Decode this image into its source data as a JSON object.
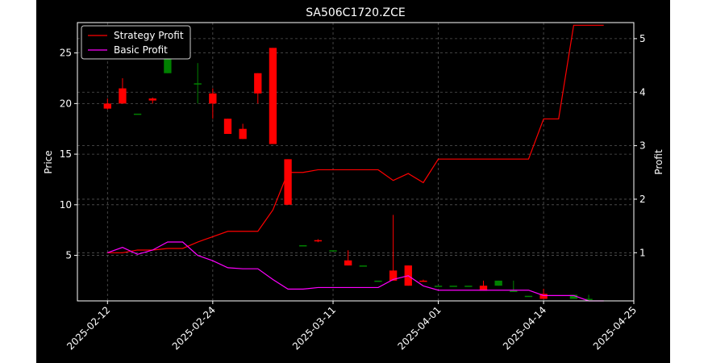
{
  "chart_data": {
    "type": "candlestick+line",
    "title": "SA506C1720.ZCE",
    "xlabel": "",
    "ylabel_left": "Price",
    "ylabel_right": "Profit",
    "ylim_left": [
      0.5,
      28
    ],
    "ylim_right": [
      0.1,
      5.3
    ],
    "grid": true,
    "legend_position": "top-left",
    "x_ticks": [
      "2025-02-12",
      "2025-02-24",
      "2025-03-11",
      "2025-04-01",
      "2025-04-14",
      "2025-04-25"
    ],
    "y_ticks_left": [
      5,
      10,
      15,
      20,
      25
    ],
    "y_ticks_right": [
      1,
      2,
      3,
      4,
      5
    ],
    "colors": {
      "up": "#008000",
      "down": "#ff0000",
      "strategy": "#ff0000",
      "basic": "#ff00ff"
    },
    "candles": [
      {
        "x": 0,
        "open": 20.0,
        "close": 19.5,
        "high": 20.5,
        "low": 19.4
      },
      {
        "x": 1,
        "open": 21.5,
        "close": 20.0,
        "high": 22.5,
        "low": 20.0
      },
      {
        "x": 2,
        "open": 19.0,
        "close": 19.0,
        "high": 19.0,
        "low": 19.0
      },
      {
        "x": 3,
        "open": 20.5,
        "close": 20.3,
        "high": 20.6,
        "low": 20.0
      },
      {
        "x": 4,
        "open": 23.0,
        "close": 24.8,
        "high": 25.0,
        "low": 23.0
      },
      {
        "x": 6,
        "open": 22.0,
        "close": 22.0,
        "high": 24.0,
        "low": 20.0
      },
      {
        "x": 7,
        "open": 21.0,
        "close": 20.0,
        "high": 21.5,
        "low": 18.5
      },
      {
        "x": 8,
        "open": 18.5,
        "close": 17.0,
        "high": 18.5,
        "low": 17.0
      },
      {
        "x": 9,
        "open": 17.5,
        "close": 16.5,
        "high": 18.0,
        "low": 16.5
      },
      {
        "x": 10,
        "open": 23.0,
        "close": 21.0,
        "high": 23.0,
        "low": 20.0
      },
      {
        "x": 11,
        "open": 25.5,
        "close": 16.0,
        "high": 25.5,
        "low": 16.0
      },
      {
        "x": 12,
        "open": 14.5,
        "close": 10.0,
        "high": 14.5,
        "low": 10.0
      },
      {
        "x": 13,
        "open": 6.0,
        "close": 6.0,
        "high": 6.0,
        "low": 6.0
      },
      {
        "x": 14,
        "open": 6.5,
        "close": 6.4,
        "high": 6.6,
        "low": 6.3
      },
      {
        "x": 15,
        "open": 5.5,
        "close": 5.5,
        "high": 5.5,
        "low": 5.5
      },
      {
        "x": 16,
        "open": 4.5,
        "close": 4.0,
        "high": 5.5,
        "low": 4.0
      },
      {
        "x": 17,
        "open": 4.0,
        "close": 4.0,
        "high": 4.0,
        "low": 4.0
      },
      {
        "x": 18,
        "open": 2.5,
        "close": 2.5,
        "high": 2.5,
        "low": 2.5
      },
      {
        "x": 19,
        "open": 3.5,
        "close": 2.5,
        "high": 9.0,
        "low": 2.5
      },
      {
        "x": 20,
        "open": 4.0,
        "close": 2.0,
        "high": 4.0,
        "low": 2.0
      },
      {
        "x": 21,
        "open": 2.5,
        "close": 2.4,
        "high": 2.6,
        "low": 2.4
      },
      {
        "x": 22,
        "open": 2.0,
        "close": 2.0,
        "high": 2.0,
        "low": 2.0
      },
      {
        "x": 23,
        "open": 2.0,
        "close": 2.0,
        "high": 2.0,
        "low": 2.0
      },
      {
        "x": 24,
        "open": 2.0,
        "close": 2.0,
        "high": 2.0,
        "low": 2.0
      },
      {
        "x": 25,
        "open": 2.0,
        "close": 1.5,
        "high": 2.5,
        "low": 1.5
      },
      {
        "x": 26,
        "open": 2.0,
        "close": 2.5,
        "high": 2.5,
        "low": 2.0
      },
      {
        "x": 27,
        "open": 1.5,
        "close": 1.5,
        "high": 2.5,
        "low": 1.5
      },
      {
        "x": 28,
        "open": 1.0,
        "close": 1.0,
        "high": 1.0,
        "low": 1.0
      },
      {
        "x": 29,
        "open": 1.2,
        "close": 0.7,
        "high": 1.7,
        "low": 0.7
      },
      {
        "x": 31,
        "open": 0.7,
        "close": 1.1,
        "high": 1.1,
        "low": 0.7
      },
      {
        "x": 32,
        "open": 0.7,
        "close": 0.7,
        "high": 1.1,
        "low": 0.7
      }
    ],
    "series": [
      {
        "name": "Strategy Profit",
        "x": [
          0,
          1,
          2,
          3,
          4,
          5,
          6,
          7,
          8,
          9,
          10,
          11,
          12,
          13,
          14,
          15,
          16,
          17,
          18,
          19,
          20,
          21,
          22,
          23,
          24,
          25,
          26,
          27,
          28,
          29,
          30,
          31,
          32,
          33
        ],
        "values": [
          1.0,
          1.0,
          1.05,
          1.05,
          1.08,
          1.08,
          1.2,
          1.3,
          1.4,
          1.4,
          1.4,
          1.8,
          2.5,
          2.5,
          2.55,
          2.55,
          2.55,
          2.55,
          2.55,
          2.35,
          2.48,
          2.31,
          2.75,
          2.75,
          2.75,
          2.75,
          2.75,
          2.75,
          2.75,
          3.5,
          3.5,
          5.25,
          5.25,
          5.25
        ]
      },
      {
        "name": "Basic Profit",
        "x": [
          0,
          1,
          2,
          3,
          4,
          5,
          6,
          7,
          8,
          9,
          10,
          11,
          12,
          13,
          14,
          15,
          16,
          17,
          18,
          19,
          20,
          21,
          22,
          23,
          24,
          25,
          26,
          27,
          28,
          29,
          30,
          31,
          32,
          33
        ],
        "values": [
          1.0,
          1.1,
          0.97,
          1.05,
          1.2,
          1.2,
          0.95,
          0.85,
          0.72,
          0.7,
          0.7,
          0.5,
          0.32,
          0.32,
          0.35,
          0.35,
          0.35,
          0.35,
          0.35,
          0.5,
          0.57,
          0.38,
          0.3,
          0.3,
          0.3,
          0.3,
          0.3,
          0.3,
          0.3,
          0.2,
          0.2,
          0.2,
          0.1,
          0.1
        ]
      }
    ]
  }
}
